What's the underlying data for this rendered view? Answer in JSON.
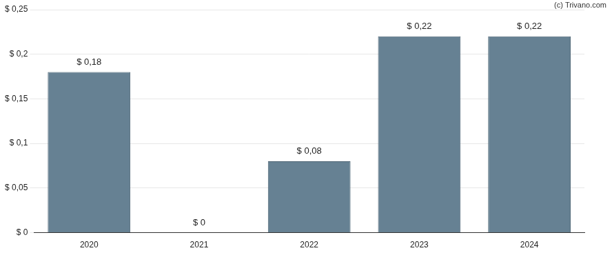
{
  "chart_data": {
    "type": "bar",
    "annotation": "(c) Trivano.com",
    "categories": [
      "2020",
      "2021",
      "2022",
      "2023",
      "2024"
    ],
    "values": [
      0.18,
      0,
      0.08,
      0.22,
      0.22
    ],
    "value_labels": [
      "$ 0,18",
      "$ 0",
      "$ 0,08",
      "$ 0,22",
      "$ 0,22"
    ],
    "data_labels": true,
    "color": "#668193",
    "ylim": [
      0,
      0.25
    ],
    "yticks": [
      {
        "value": 0,
        "label": "$ 0"
      },
      {
        "value": 0.05,
        "label": "$ 0,05"
      },
      {
        "value": 0.1,
        "label": "$ 0,1"
      },
      {
        "value": 0.15,
        "label": "$ 0,15"
      },
      {
        "value": 0.2,
        "label": "$ 0,2"
      },
      {
        "value": 0.25,
        "label": "$ 0,25"
      }
    ],
    "grid": true
  }
}
